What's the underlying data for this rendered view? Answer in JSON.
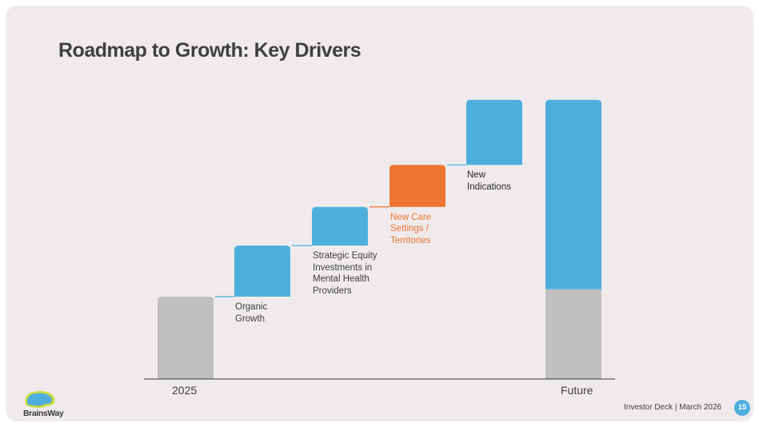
{
  "slide": {
    "title": "Roadmap to Growth: Key Drivers",
    "footer": "Investor Deck | March 2026",
    "page_number": "15",
    "logo_text": "BrainsWay"
  },
  "chart_data": {
    "type": "bar",
    "subtype": "waterfall",
    "categories": [
      "2025",
      "Organic Growth",
      "Strategic Equity Investments in Mental Health Providers",
      "New Care Settings / Territories",
      "New Indications",
      "Future"
    ],
    "axis_labels": [
      "2025",
      "",
      "",
      "",
      "",
      "Future"
    ],
    "step_labels": [
      "",
      "Organic\nGrowth",
      "Strategic Equity\nInvestments in\nMental Health\nProviders",
      "New Care\nSettings /\nTerritories",
      "New\nIndications",
      ""
    ],
    "steps": [
      {
        "base": 0,
        "value": 100
      },
      {
        "base": 100,
        "value": 62
      },
      {
        "base": 162,
        "value": 47
      },
      {
        "base": 209,
        "value": 51
      },
      {
        "base": 260,
        "value": 79
      },
      {
        "base": 0,
        "value": 339
      }
    ],
    "future_split": {
      "base_part": 109,
      "growth_part": 230
    },
    "colors": {
      "base": "#bfbfbf",
      "growth": "#4fafdc",
      "highlight": "#ed7431",
      "axis": "#595959",
      "highlight_text": "#ed7431"
    },
    "highlight_index": 3,
    "ylim": [
      0,
      345
    ]
  }
}
